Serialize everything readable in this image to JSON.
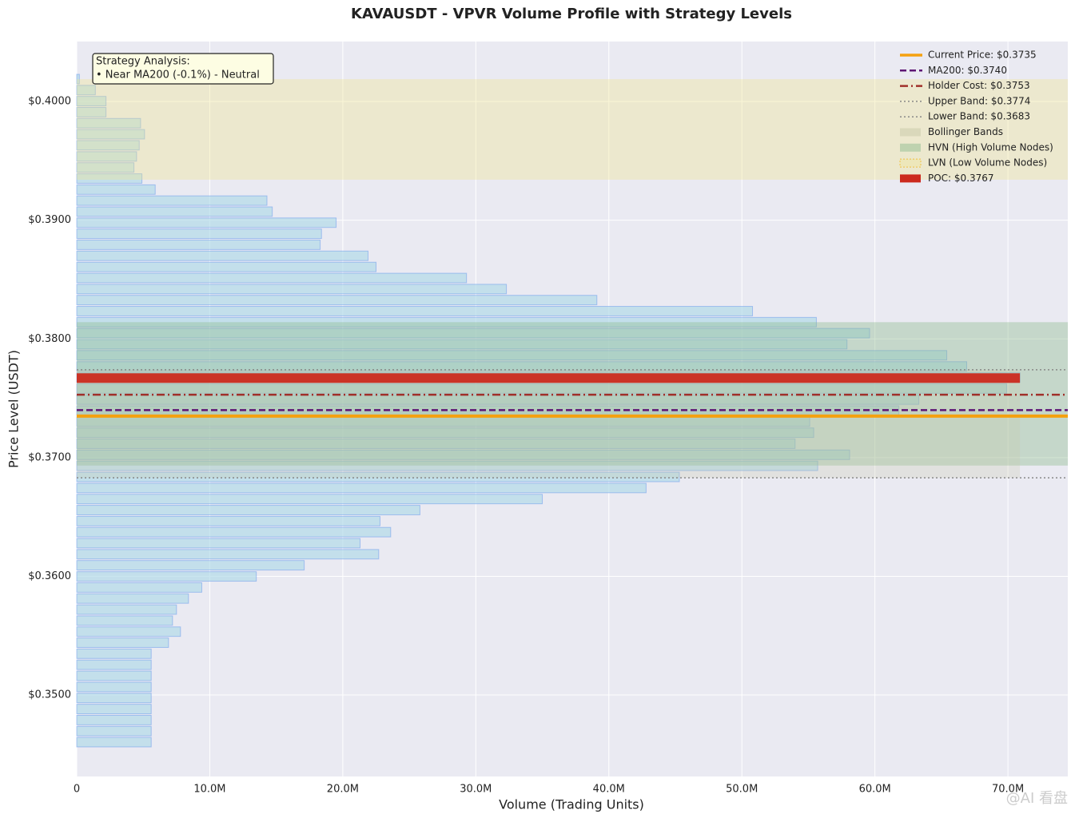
{
  "chart_data": {
    "type": "hbar",
    "title": "KAVAUSDT - VPVR Volume Profile with Strategy Levels",
    "x_label": "Volume (Trading Units)",
    "y_label": "Price Level (USDT)",
    "y": [
      0.34603,
      0.34696,
      0.34789,
      0.34882,
      0.34975,
      0.35068,
      0.35162,
      0.35255,
      0.35348,
      0.35441,
      0.35534,
      0.35627,
      0.3572,
      0.35813,
      0.35906,
      0.35999,
      0.36093,
      0.36186,
      0.36279,
      0.36372,
      0.36465,
      0.36558,
      0.36651,
      0.36744,
      0.36837,
      0.36931,
      0.37024,
      0.37117,
      0.3721,
      0.37303,
      0.37396,
      0.37489,
      0.37582,
      0.37675,
      0.37768,
      0.37862,
      0.37955,
      0.38048,
      0.38141,
      0.38234,
      0.38327,
      0.3842,
      0.38513,
      0.38606,
      0.387,
      0.38793,
      0.38886,
      0.38979,
      0.39072,
      0.39165,
      0.39258,
      0.39351,
      0.39444,
      0.39537,
      0.39631,
      0.39724,
      0.39817,
      0.3991,
      0.40003,
      0.40096,
      0.40189
    ],
    "values": [
      5600000,
      5600000,
      5600000,
      5600000,
      5600000,
      5600000,
      5600000,
      5600000,
      5600000,
      6900000,
      7800000,
      7200000,
      7500000,
      8400000,
      9400000,
      13500000,
      17100000,
      22700000,
      21300000,
      23600000,
      22800000,
      25800000,
      35000000,
      42800000,
      45300000,
      55700000,
      58100000,
      54000000,
      55400000,
      55100000,
      61800000,
      63300000,
      69900000,
      70900000,
      66900000,
      65400000,
      57900000,
      59600000,
      55600000,
      50800000,
      39100000,
      32300000,
      29300000,
      22500000,
      21900000,
      18300000,
      18400000,
      19500000,
      14700000,
      14300000,
      5900000,
      4900000,
      4300000,
      4500000,
      4700000,
      5100000,
      4800000,
      2200000,
      2200000,
      1400000,
      200000
    ],
    "color": "#add8e6",
    "edge_color": "#6495ed",
    "xlim": [
      0,
      74500000
    ],
    "xticks": [
      0,
      {
        "value": 10000000,
        "label": "10.0M"
      },
      {
        "value": 20000000,
        "label": "20.0M"
      },
      {
        "value": 30000000,
        "label": "30.0M"
      },
      {
        "value": 40000000,
        "label": "40.0M"
      },
      {
        "value": 50000000,
        "label": "50.0M"
      },
      {
        "value": 60000000,
        "label": "60.0M"
      },
      {
        "value": 70000000,
        "label": "70.0M"
      }
    ],
    "ylim": [
      0.34314,
      0.40505
    ],
    "yticks": [
      {
        "value": 0.35,
        "label": "$0.3500"
      },
      {
        "value": 0.36,
        "label": "$0.3600"
      },
      {
        "value": 0.37,
        "label": "$0.3700"
      },
      {
        "value": 0.38,
        "label": "$0.3800"
      },
      {
        "value": 0.39,
        "label": "$0.3900"
      },
      {
        "value": 0.4,
        "label": "$0.4000"
      }
    ],
    "grid": true,
    "levels": [
      {
        "label": "Current Price: $0.3735",
        "value": 0.3735,
        "color": "#f5a10f",
        "style": "solid"
      },
      {
        "label": "MA200: $0.3740",
        "value": 0.374,
        "color": "#5e1675",
        "style": "dashed"
      },
      {
        "label": "Holder Cost: $0.3753",
        "value": 0.3753,
        "color": "#a0302a",
        "style": "dashdot"
      },
      {
        "label": "Upper Band: $0.3774",
        "value": 0.3774,
        "color": "#888888",
        "style": "dotted"
      },
      {
        "label": "Lower Band: $0.3683",
        "value": 0.3683,
        "color": "#888888",
        "style": "dotted"
      }
    ],
    "bollinger": {
      "label": "Bollinger Bands",
      "color": "#c8c8a8"
    },
    "hvn_zone": {
      "label": "HVN (High Volume Nodes)",
      "range": [
        0.36933,
        0.38141
      ],
      "color": "#8fbc8f"
    },
    "lvn_zone": {
      "label": "LVN (Low Volume Nodes)",
      "range": [
        0.39341,
        0.40188
      ],
      "color": "#f0e68c"
    },
    "poc": {
      "label": "POC: $0.3767",
      "value": 0.3767,
      "color": "#cc2a1e"
    },
    "legend": "upper right",
    "annotation": [
      "Strategy Analysis:",
      "• Near MA200 (-0.1%) - Neutral"
    ],
    "watermark": "@AI 看盘"
  }
}
